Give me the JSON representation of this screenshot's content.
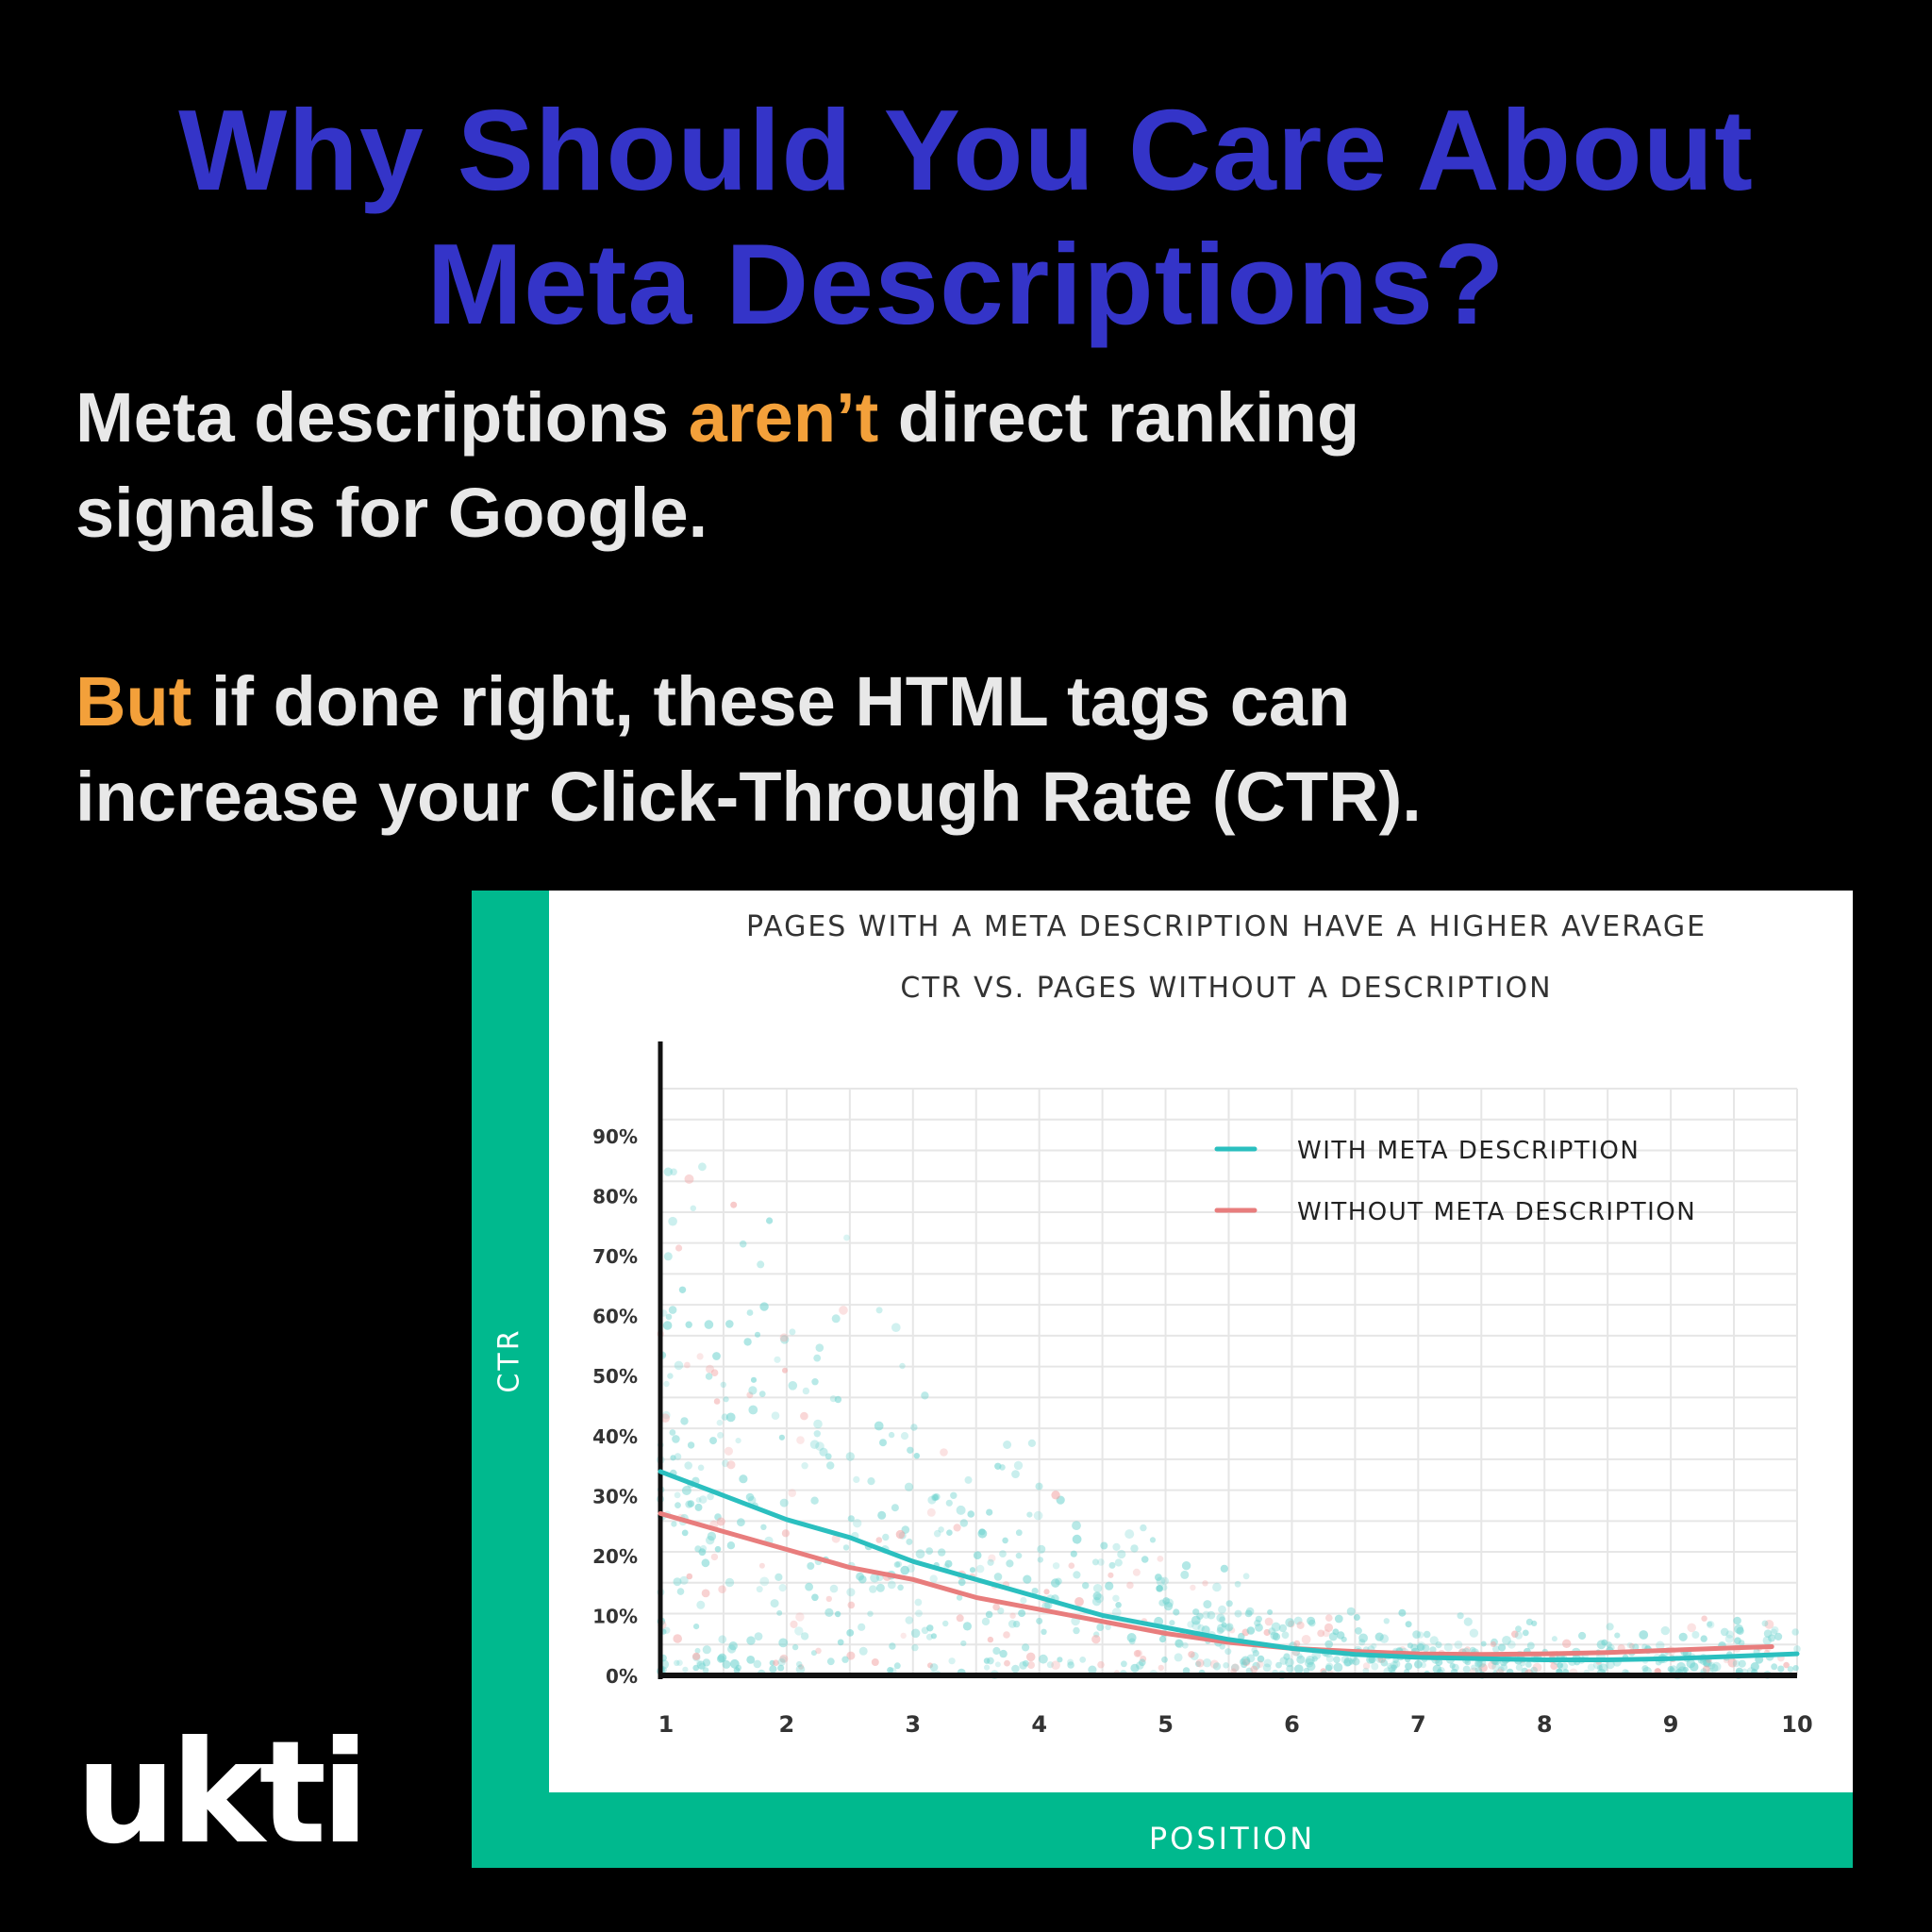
{
  "slide": {
    "title_line1": "Why Should You Care About",
    "title_line2": "Meta Descriptions?",
    "para1": {
      "before": "Meta descriptions ",
      "highlight": "aren’t",
      "after_line1": " direct ranking",
      "line2": "signals for Google."
    },
    "para2": {
      "highlight": "But",
      "after_line1": " if done right, these HTML tags can",
      "line2": "increase your Click-Through Rate (CTR)."
    },
    "logo_text": "ukti",
    "colors": {
      "title": "#3434c8",
      "highlight": "#f3a03a",
      "body_text": "#e8e8e8",
      "chart_accent": "#00b98e"
    }
  },
  "chart_data": {
    "type": "line",
    "title_line1": "PAGES WITH A META DESCRIPTION HAVE A HIGHER AVERAGE",
    "title_line2": "CTR VS. PAGES WITHOUT A DESCRIPTION",
    "xlabel": "POSITION",
    "ylabel": "CTR",
    "x_ticks": [
      "1",
      "2",
      "3",
      "4",
      "5",
      "6",
      "7",
      "8",
      "9",
      "10"
    ],
    "y_ticks": [
      "0%",
      "10%",
      "20%",
      "30%",
      "40%",
      "50%",
      "60%",
      "70%",
      "80%",
      "90%"
    ],
    "xlim": [
      1,
      10
    ],
    "ylim": [
      0,
      90
    ],
    "grid": true,
    "legend_position": "top-right",
    "series": [
      {
        "name": "WITH META DESCRIPTION",
        "color": "#2bbfbf",
        "x": [
          1,
          1.5,
          2,
          2.5,
          3,
          3.5,
          4,
          4.5,
          5,
          5.5,
          6,
          6.5,
          7,
          7.5,
          8,
          8.5,
          9,
          9.5,
          10
        ],
        "y": [
          34,
          30,
          26,
          23,
          19,
          16,
          13,
          10,
          8,
          6,
          4.5,
          3.5,
          3,
          2.8,
          2.6,
          2.6,
          2.8,
          3.2,
          3.6
        ]
      },
      {
        "name": "WITHOUT META DESCRIPTION",
        "color": "#e87d7d",
        "x": [
          1,
          1.5,
          2,
          2.5,
          3,
          3.5,
          4,
          4.5,
          5,
          5.5,
          6,
          6.5,
          7,
          7.5,
          8,
          8.5,
          9,
          9.5,
          9.8
        ],
        "y": [
          27,
          24,
          21,
          18,
          16,
          13,
          11,
          9,
          7,
          5.5,
          4.5,
          4,
          3.6,
          3.5,
          3.6,
          3.8,
          4.2,
          4.6,
          4.8
        ]
      }
    ]
  }
}
